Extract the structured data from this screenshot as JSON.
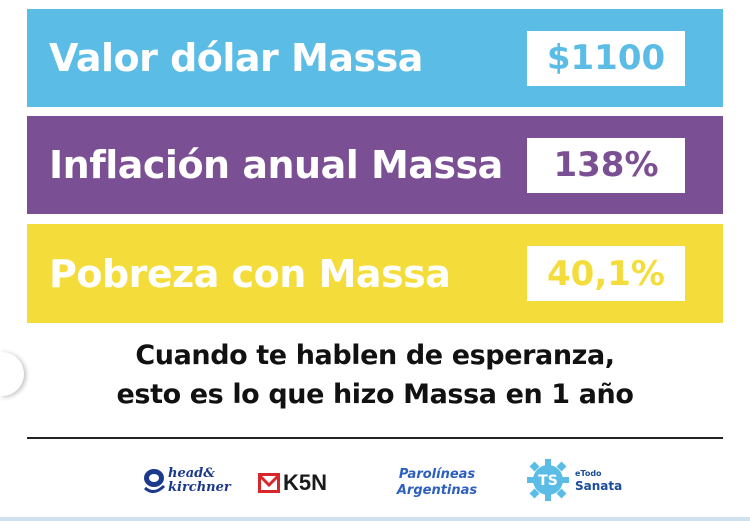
{
  "colors": {
    "blue": "#5bbde6",
    "purple": "#7b4f94",
    "yellow": "#f4dd3a"
  },
  "rows": [
    {
      "label": "Valor dólar Massa",
      "value": "$1100"
    },
    {
      "label": "Inflación anual Massa",
      "value": "138%"
    },
    {
      "label": "Pobreza con Massa",
      "value": "40,1%"
    }
  ],
  "subtitle": {
    "line1": "Cuando te hablen de esperanza,",
    "line2": "esto es lo que hizo Massa en 1 año"
  },
  "logos": {
    "head_kirchner": {
      "line1": "head&",
      "line2": "kirchner",
      "icon": "head-kirchner-logo-icon"
    },
    "k5n": {
      "text": "K5N",
      "icon": "envelope-m-icon"
    },
    "parolineas": {
      "line1": "Parolíneas",
      "line2": "Argentinas",
      "icon": "parolineas-logo"
    },
    "todo_sanata": {
      "badge": "TS",
      "small": "eTodo",
      "big": "Sanata",
      "icon": "gear-badge-icon"
    }
  }
}
